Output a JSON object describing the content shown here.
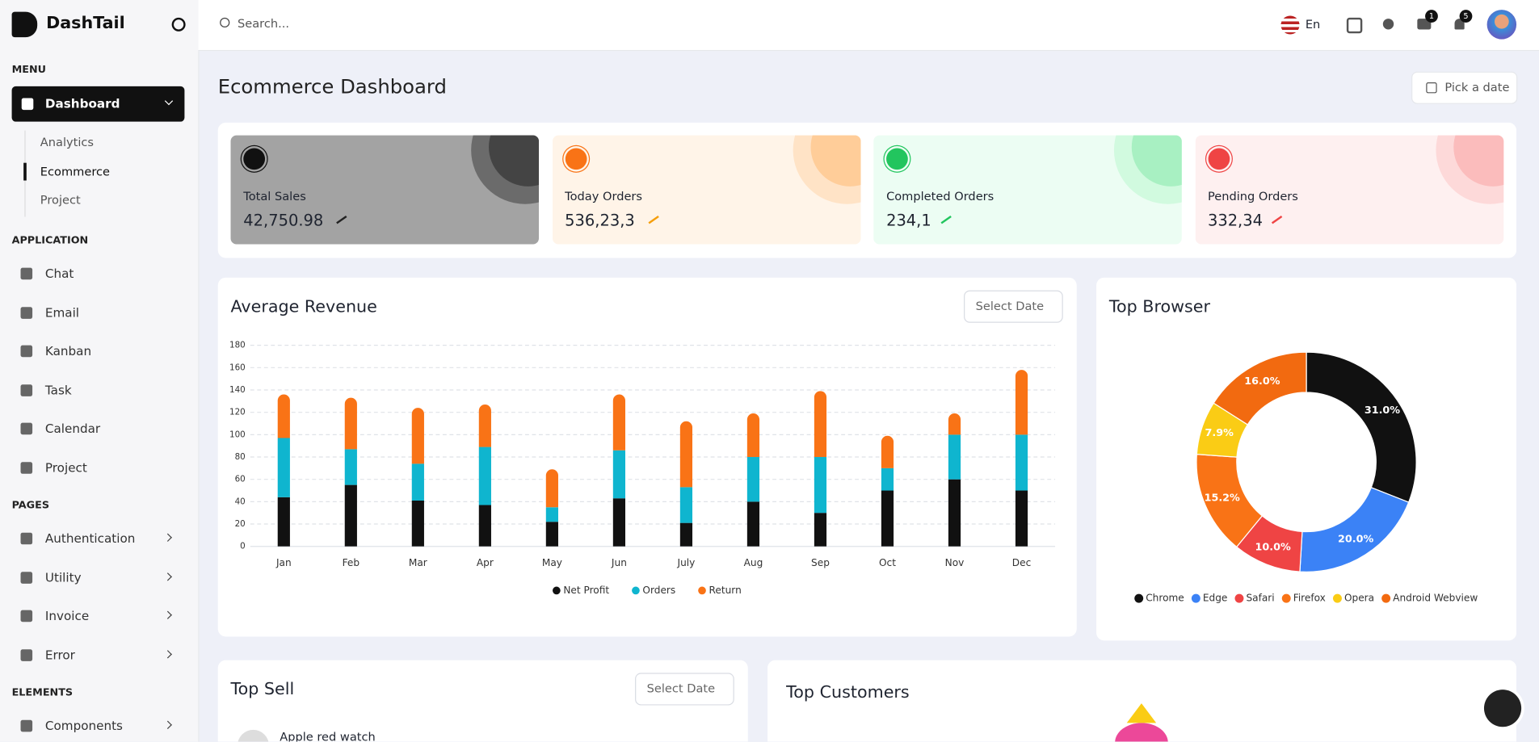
{
  "brand": "DashTail",
  "search_placeholder": "Search...",
  "language": "En",
  "badges": {
    "messages": 1,
    "notifications": 5
  },
  "sidebar": [
    {
      "title": "MENU",
      "items": [
        {
          "label": "Dashboard",
          "children": [
            "Analytics",
            "Ecommerce",
            "Project"
          ]
        }
      ]
    },
    {
      "title": "APPLICATION",
      "items": [
        {
          "label": "Chat"
        },
        {
          "label": "Email"
        },
        {
          "label": "Kanban"
        },
        {
          "label": "Task"
        },
        {
          "label": "Calendar"
        },
        {
          "label": "Project"
        }
      ]
    },
    {
      "title": "PAGES",
      "items": [
        {
          "label": "Authentication"
        },
        {
          "label": "Utility"
        },
        {
          "label": "Invoice"
        },
        {
          "label": "Error"
        }
      ]
    },
    {
      "title": "ELEMENTS",
      "items": [
        {
          "label": "Components"
        }
      ]
    }
  ],
  "page_title": "Ecommerce Dashboard",
  "date_button": "Pick a date",
  "stats": [
    {
      "label": "Total Sales",
      "value": "42,750.98"
    },
    {
      "label": "Today Orders",
      "value": "536,23,3"
    },
    {
      "label": "Completed Orders",
      "value": "234,1"
    },
    {
      "label": "Pending Orders",
      "value": "332,34"
    }
  ],
  "revenue_filter": "Select Date",
  "chart_data": [
    {
      "type": "bar",
      "stacked": true,
      "title": "Average Revenue",
      "categories": [
        "Jan",
        "Feb",
        "Mar",
        "Apr",
        "May",
        "Jun",
        "July",
        "Aug",
        "Sep",
        "Oct",
        "Nov",
        "Dec"
      ],
      "series": [
        {
          "name": "Net Profit",
          "color": "#111111",
          "values": [
            44,
            55,
            41,
            37,
            22,
            43,
            21,
            40,
            30,
            50,
            60,
            50
          ]
        },
        {
          "name": "Orders",
          "color": "#0fb5cf",
          "values": [
            53,
            32,
            33,
            52,
            13,
            43,
            32,
            40,
            50,
            20,
            40,
            50
          ]
        },
        {
          "name": "Return",
          "color": "#f97316",
          "values": [
            39,
            46,
            50,
            38,
            34,
            50,
            59,
            39,
            59,
            29,
            19,
            58
          ]
        }
      ],
      "ylim": [
        0,
        180
      ],
      "yticks": [
        0,
        20,
        40,
        60,
        80,
        100,
        120,
        140,
        160,
        180
      ],
      "grid": true
    },
    {
      "type": "donut",
      "title": "Top Browser",
      "categories": [
        "Chrome",
        "Edge",
        "Safari",
        "Firefox",
        "Opera",
        "Android Webview"
      ],
      "values": [
        31,
        20,
        10,
        15.2,
        7.9,
        16
      ],
      "value_labels": [
        "31.0%",
        "20.0%",
        "10.0%",
        "15.2%",
        "7.9%",
        "16.0%"
      ],
      "colors": [
        "#111111",
        "#3b82f6",
        "#ef4444",
        "#f97316",
        "#facc15",
        "#f26a10"
      ]
    }
  ],
  "top_sell": {
    "title": "Top Sell",
    "filter": "Select Date",
    "items": [
      "Apple red watch"
    ]
  },
  "top_customers": {
    "title": "Top Customers"
  }
}
